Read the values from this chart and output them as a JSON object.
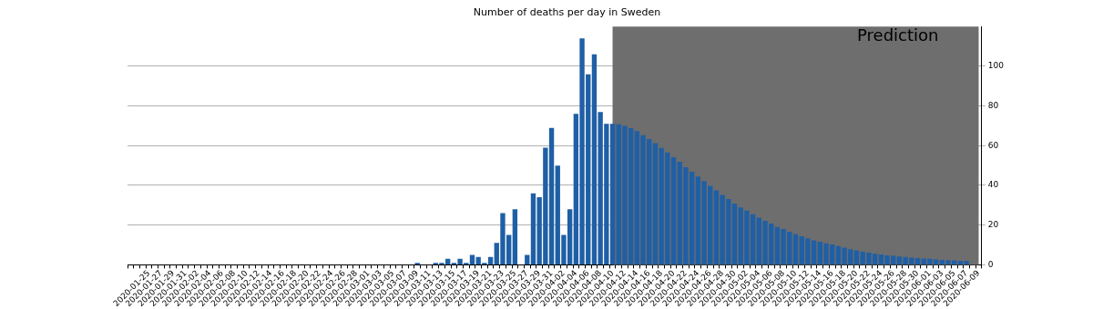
{
  "chart_data": {
    "type": "bar",
    "title": "Number of deaths per day in Sweden",
    "categories": [
      null,
      null,
      null,
      "2020-01-25",
      null,
      "2020-01-27",
      null,
      "2020-01-29",
      null,
      "2020-01-31",
      null,
      "2020-02-02",
      null,
      "2020-02-04",
      null,
      "2020-02-06",
      null,
      "2020-02-08",
      null,
      "2020-02-10",
      null,
      "2020-02-12",
      null,
      "2020-02-14",
      null,
      "2020-02-16",
      null,
      "2020-02-18",
      null,
      "2020-02-20",
      null,
      "2020-02-22",
      null,
      "2020-02-24",
      null,
      "2020-02-26",
      null,
      "2020-02-28",
      null,
      "2020-03-01",
      null,
      "2020-03-03",
      null,
      "2020-03-05",
      null,
      "2020-03-07",
      null,
      "2020-03-09",
      null,
      "2020-03-11",
      null,
      "2020-03-13",
      null,
      "2020-03-15",
      null,
      "2020-03-17",
      null,
      "2020-03-19",
      null,
      "2020-03-21",
      null,
      "2020-03-23",
      null,
      "2020-03-25",
      null,
      "2020-03-27",
      null,
      "2020-03-29",
      null,
      "2020-03-31",
      null,
      "2020-04-02",
      null,
      "2020-04-04",
      null,
      "2020-04-06",
      null,
      "2020-04-08",
      null,
      "2020-04-10",
      null,
      "2020-04-12",
      null,
      "2020-04-14",
      null,
      "2020-04-16",
      null,
      "2020-04-18",
      null,
      "2020-04-20",
      null,
      "2020-04-22",
      null,
      "2020-04-24",
      null,
      "2020-04-26",
      null,
      "2020-04-28",
      null,
      "2020-04-30",
      null,
      "2020-05-02",
      null,
      "2020-05-04",
      null,
      "2020-05-06",
      null,
      "2020-05-08",
      null,
      "2020-05-10",
      null,
      "2020-05-12",
      null,
      "2020-05-14",
      null,
      "2020-05-16",
      null,
      "2020-05-18",
      null,
      "2020-05-20",
      null,
      "2020-05-22",
      null,
      "2020-05-24",
      null,
      "2020-05-26",
      null,
      "2020-05-28",
      null,
      "2020-05-30",
      null,
      "2020-06-01",
      null,
      "2020-06-03",
      null,
      "2020-06-05",
      null,
      "2020-06-07",
      null,
      "2020-06-09"
    ],
    "values": [
      0,
      0,
      0,
      0,
      0,
      0,
      0,
      0,
      0,
      0,
      0,
      0,
      0,
      0,
      0,
      0,
      0,
      0,
      0,
      0,
      0,
      0,
      0,
      0,
      0,
      0,
      0,
      0,
      0,
      0,
      0,
      0,
      0,
      0,
      0,
      0,
      0,
      0,
      0,
      0,
      0,
      0,
      0,
      0,
      0,
      0,
      0,
      1,
      0,
      0,
      1,
      1,
      3,
      1,
      3,
      1,
      5,
      4,
      1,
      4,
      11,
      26,
      15,
      28,
      0,
      5,
      36,
      34,
      59,
      69,
      50,
      15,
      28,
      76,
      114,
      96,
      106,
      77,
      71,
      71,
      70.8,
      70,
      68.8,
      67.3,
      65.3,
      63.3,
      61.3,
      58.9,
      56.6,
      54.2,
      51.9,
      49.2,
      46.9,
      44.5,
      42.2,
      39.8,
      37.5,
      35.2,
      33.1,
      30.8,
      28.9,
      27.3,
      25.5,
      23.8,
      22.2,
      20.8,
      19.1,
      18,
      16.7,
      15.5,
      14.4,
      13.3,
      12.3,
      11.6,
      10.8,
      10.2,
      9.4,
      8.6,
      7.8,
      7.3,
      6.6,
      6.1,
      5.6,
      5.2,
      4.8,
      4.5,
      4.2,
      3.9,
      3.6,
      3.4,
      3.1,
      3,
      2.7,
      2.5,
      2.3,
      2.2,
      2,
      2,
      null,
      null
    ],
    "color": "#1f5fa5",
    "ylim": [
      0,
      120
    ],
    "yticks": [
      0,
      20,
      40,
      60,
      80,
      100
    ],
    "grid": "y",
    "bands": [
      {
        "axis": "x",
        "from": "2020-04-10",
        "to": "2020-06-09",
        "label": "Prediction",
        "color": "#6e6e6e"
      }
    ]
  }
}
